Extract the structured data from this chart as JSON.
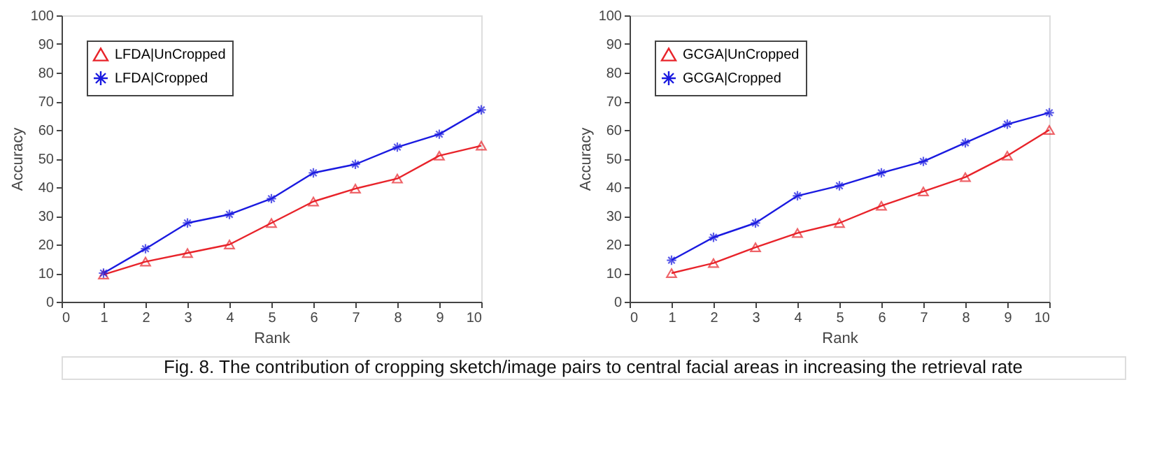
{
  "chart_data": [
    {
      "type": "line",
      "xlabel": "Rank",
      "ylabel": "Accuracy",
      "x": [
        1,
        2,
        3,
        4,
        5,
        6,
        7,
        8,
        9,
        10
      ],
      "xlim": [
        0,
        10
      ],
      "xticks": [
        0,
        1,
        2,
        3,
        4,
        5,
        6,
        7,
        8,
        9,
        10
      ],
      "ylim": [
        0,
        100
      ],
      "yticks": [
        0,
        10,
        20,
        30,
        40,
        50,
        60,
        70,
        80,
        90,
        100
      ],
      "grid": false,
      "legend": "top left",
      "line_style": "solid",
      "series": [
        {
          "name": "LFDA|UnCropped",
          "color": "#e8232a",
          "marker": "triangle",
          "values": [
            9.5,
            14,
            17,
            20,
            27.5,
            35,
            39.5,
            43,
            51,
            54.5
          ]
        },
        {
          "name": "LFDA|Cropped",
          "color": "#1a1ae0",
          "marker": "cross",
          "values": [
            10,
            18.5,
            27.5,
            30.5,
            36,
            45,
            48,
            54,
            58.5,
            67
          ]
        }
      ],
      "annotations": [
        "Fig. 8. The contribution of cropping sketch/image pairs to central facial areas in increasing the retrieval rate"
      ]
    },
    {
      "type": "line",
      "xlabel": "Rank",
      "ylabel": "Accuracy",
      "x": [
        1,
        2,
        3,
        4,
        5,
        6,
        7,
        8,
        9,
        10
      ],
      "xlim": [
        0,
        10
      ],
      "xticks": [
        0,
        1,
        2,
        3,
        4,
        5,
        6,
        7,
        8,
        9,
        10
      ],
      "ylim": [
        0,
        100
      ],
      "yticks": [
        0,
        10,
        20,
        30,
        40,
        50,
        60,
        70,
        80,
        90,
        100
      ],
      "grid": false,
      "legend": "top left",
      "line_style": "solid",
      "series": [
        {
          "name": "GCGA|UnCropped",
          "color": "#e8232a",
          "marker": "triangle",
          "values": [
            10,
            13.5,
            19,
            24,
            27.5,
            33.5,
            38.5,
            43.5,
            51,
            60
          ]
        },
        {
          "name": "GCGA|Cropped",
          "color": "#1a1ae0",
          "marker": "cross",
          "values": [
            14.5,
            22.5,
            27.5,
            37,
            40.5,
            45,
            49,
            55.5,
            62,
            66
          ]
        }
      ]
    }
  ]
}
